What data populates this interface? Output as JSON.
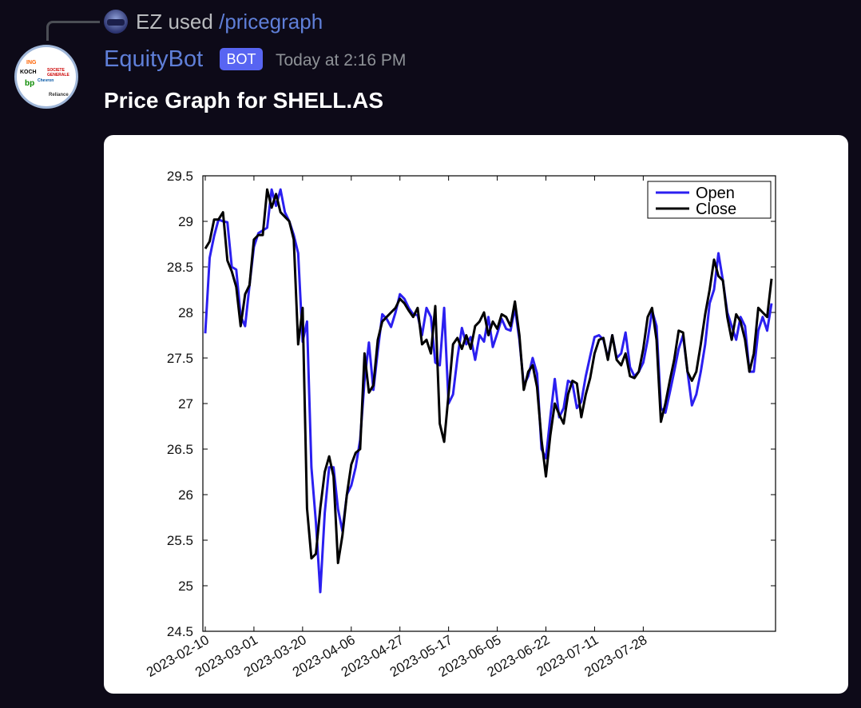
{
  "reply": {
    "user": "EZ",
    "verb": "used",
    "command": "/pricegraph"
  },
  "message": {
    "author": "EquityBot",
    "badge": "BOT",
    "timestamp": "Today at 2:16 PM",
    "title": "Price Graph for SHELL.AS"
  },
  "avatar_logos": [
    "ING",
    "KOCH",
    "SOCIETE GENERALE",
    "bp",
    "Chevron",
    "Reliance"
  ],
  "colors": {
    "open": "#2b1ff0",
    "close": "#000000",
    "accent": "#5f7fd8",
    "badge": "#5865f2"
  },
  "chart_data": {
    "type": "line",
    "ylim": [
      24.5,
      29.5
    ],
    "yticks": [
      "24.5",
      "25",
      "25.5",
      "26",
      "26.5",
      "27",
      "27.5",
      "28",
      "28.5",
      "29",
      "29.5"
    ],
    "xticks": [
      "2023-02-10",
      "2023-03-01",
      "2023-03-20",
      "2023-04-06",
      "2023-04-27",
      "2023-05-17",
      "2023-06-05",
      "2023-06-22",
      "2023-07-11",
      "2023-07-28"
    ],
    "xtick_index": [
      0,
      11,
      22,
      33,
      44,
      55,
      66,
      77,
      88,
      99
    ],
    "legend_position": "top-right",
    "grid": false,
    "series": [
      {
        "name": "Open",
        "values": [
          27.77,
          28.6,
          28.84,
          29.02,
          29.0,
          28.99,
          28.5,
          28.47,
          27.96,
          27.85,
          28.3,
          28.72,
          28.87,
          28.9,
          28.93,
          29.35,
          29.17,
          29.35,
          29.1,
          29.0,
          28.85,
          28.65,
          27.68,
          27.9,
          26.3,
          25.7,
          24.93,
          25.8,
          26.3,
          26.3,
          25.84,
          25.6,
          26.0,
          26.1,
          26.3,
          26.6,
          27.25,
          27.67,
          27.15,
          27.58,
          27.98,
          27.93,
          27.84,
          28.0,
          28.2,
          28.15,
          28.05,
          27.98,
          27.97,
          27.75,
          28.05,
          27.95,
          27.45,
          27.42,
          28.05,
          27.0,
          27.1,
          27.5,
          27.83,
          27.65,
          27.73,
          27.48,
          27.75,
          27.68,
          27.95,
          27.62,
          27.77,
          27.93,
          27.82,
          27.8,
          28.05,
          27.7,
          27.2,
          27.3,
          27.5,
          27.33,
          26.5,
          26.4,
          26.85,
          27.27,
          26.85,
          26.95,
          27.25,
          27.22,
          26.95,
          27.02,
          27.3,
          27.52,
          27.73,
          27.75,
          27.7,
          27.5,
          27.75,
          27.5,
          27.55,
          27.78,
          27.4,
          27.3,
          27.35,
          27.45,
          27.7,
          28.02,
          27.85,
          26.95,
          26.9,
          27.12,
          27.35,
          27.6,
          27.75,
          27.35,
          26.98,
          27.1,
          27.35,
          27.65,
          28.1,
          28.25,
          28.65,
          28.35,
          28.0,
          27.85,
          27.7,
          27.95,
          27.85,
          27.35,
          27.35,
          27.8,
          27.95,
          27.8,
          28.1
        ]
      },
      {
        "name": "Close",
        "values": [
          28.7,
          28.78,
          29.02,
          29.02,
          29.1,
          28.57,
          28.45,
          28.28,
          27.85,
          28.2,
          28.3,
          28.8,
          28.85,
          28.85,
          29.35,
          29.15,
          29.3,
          29.1,
          29.05,
          29.0,
          28.8,
          27.65,
          28.05,
          25.85,
          25.3,
          25.35,
          25.85,
          26.25,
          26.42,
          26.2,
          25.25,
          25.55,
          26.0,
          26.33,
          26.46,
          26.5,
          27.55,
          27.12,
          27.2,
          27.7,
          27.9,
          27.95,
          28.0,
          28.05,
          28.15,
          28.1,
          28.02,
          27.95,
          28.05,
          27.65,
          27.7,
          27.55,
          28.07,
          26.78,
          26.58,
          27.1,
          27.65,
          27.72,
          27.6,
          27.75,
          27.6,
          27.85,
          27.9,
          28.0,
          27.75,
          27.9,
          27.82,
          27.98,
          27.95,
          27.85,
          28.12,
          27.75,
          27.15,
          27.35,
          27.42,
          27.18,
          26.6,
          26.2,
          26.65,
          27.0,
          26.88,
          26.78,
          27.1,
          27.25,
          27.22,
          26.85,
          27.1,
          27.28,
          27.55,
          27.7,
          27.72,
          27.48,
          27.75,
          27.48,
          27.42,
          27.55,
          27.3,
          27.28,
          27.35,
          27.6,
          27.95,
          28.05,
          27.7,
          26.8,
          27.0,
          27.25,
          27.48,
          27.8,
          27.78,
          27.35,
          27.25,
          27.35,
          27.65,
          27.98,
          28.25,
          28.58,
          28.4,
          28.35,
          27.95,
          27.7,
          27.98,
          27.9,
          27.7,
          27.35,
          27.55,
          28.05,
          28.0,
          27.95,
          28.37
        ]
      }
    ]
  }
}
